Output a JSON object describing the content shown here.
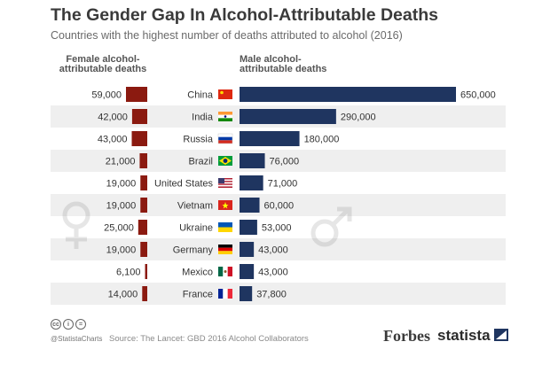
{
  "title": "The Gender Gap In Alcohol-Attributable Deaths",
  "subtitle": "Countries with the highest number of deaths attributed to alcohol (2016)",
  "female_header": "Female alcohol-\nattributable deaths",
  "male_header": "Male alcohol-\nattributable deaths",
  "footer": {
    "handle": "@StatistaCharts",
    "source": "Source: The Lancet: GBD 2016 Alcohol Collaborators",
    "cc_icons": [
      "cc",
      "i",
      "="
    ]
  },
  "logos": {
    "forbes": "Forbes",
    "statista": "statista"
  },
  "colors": {
    "female": "#8b1a10",
    "male": "#1f3560",
    "row_stripe": "#efefef"
  },
  "chart_data": {
    "type": "bar",
    "categories": [
      "China",
      "India",
      "Russia",
      "Brazil",
      "United States",
      "Vietnam",
      "Ukraine",
      "Germany",
      "Mexico",
      "France"
    ],
    "series": [
      {
        "name": "Female alcohol-attributable deaths",
        "values": [
          59000,
          42000,
          43000,
          21000,
          19000,
          19000,
          25000,
          19000,
          6100,
          14000
        ]
      },
      {
        "name": "Male alcohol-attributable deaths",
        "values": [
          650000,
          290000,
          180000,
          76000,
          71000,
          60000,
          53000,
          43000,
          43000,
          37800
        ]
      }
    ],
    "female_labels": [
      "59,000",
      "42,000",
      "43,000",
      "21,000",
      "19,000",
      "19,000",
      "25,000",
      "19,000",
      "6,100",
      "14,000"
    ],
    "male_labels": [
      "650,000",
      "290,000",
      "180,000",
      "76,000",
      "71,000",
      "60,000",
      "53,000",
      "43,000",
      "43,000",
      "37,800"
    ],
    "flags": [
      "china-flag",
      "india-flag",
      "russia-flag",
      "brazil-flag",
      "united-states-flag",
      "vietnam-flag",
      "ukraine-flag",
      "germany-flag",
      "mexico-flag",
      "france-flag"
    ],
    "orientation": "horizontal",
    "grid": false,
    "legend": "column headers"
  }
}
